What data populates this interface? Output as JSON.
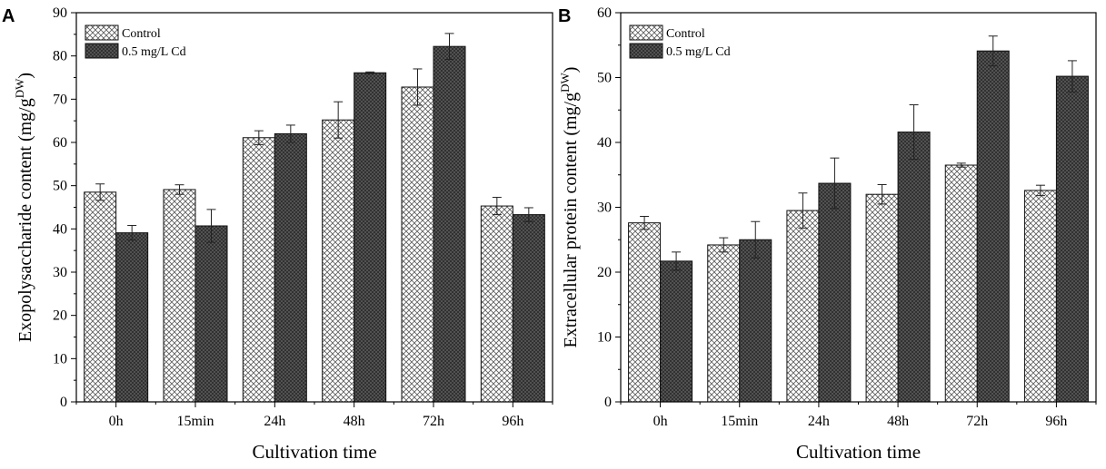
{
  "chart_data": [
    {
      "type": "bar",
      "panel_label": "A",
      "categories": [
        "0h",
        "15min",
        "24h",
        "48h",
        "72h",
        "96h"
      ],
      "series": [
        {
          "name": "Control",
          "values": [
            48.5,
            49.1,
            61.1,
            65.2,
            72.8,
            45.3
          ],
          "errors": [
            1.9,
            1.1,
            1.6,
            4.2,
            4.2,
            2.0
          ],
          "color": "#ffffff",
          "pattern": "light-crosshatch"
        },
        {
          "name": "0.5 mg/L Cd",
          "values": [
            39.1,
            40.7,
            62.0,
            76.1,
            82.2,
            43.3
          ],
          "errors": [
            1.7,
            3.8,
            2.0,
            0.2,
            3.0,
            1.6
          ],
          "color": "#6a6a6a",
          "pattern": "dark-crosshatch"
        }
      ],
      "ylabel_main": "Exopolysaccharide content (mg/g",
      "ylabel_sup": "DW",
      "ylabel_end": ")",
      "xlabel": "Cultivation time",
      "ylim": [
        0,
        90
      ],
      "yticks": [
        "0",
        "10",
        "20",
        "30",
        "40",
        "50",
        "60",
        "70",
        "80",
        "90"
      ],
      "legend_position": "top-left",
      "grid": false
    },
    {
      "type": "bar",
      "panel_label": "B",
      "categories": [
        "0h",
        "15min",
        "24h",
        "48h",
        "72h",
        "96h"
      ],
      "series": [
        {
          "name": "Control",
          "values": [
            27.6,
            24.2,
            29.5,
            32.0,
            36.5,
            32.6
          ],
          "errors": [
            1.0,
            1.1,
            2.7,
            1.5,
            0.3,
            0.8
          ],
          "color": "#ffffff",
          "pattern": "light-crosshatch"
        },
        {
          "name": "0.5 mg/L Cd",
          "values": [
            21.7,
            25.0,
            33.7,
            41.6,
            54.1,
            50.2
          ],
          "errors": [
            1.4,
            2.8,
            3.9,
            4.2,
            2.3,
            2.4
          ],
          "color": "#6a6a6a",
          "pattern": "dark-crosshatch"
        }
      ],
      "ylabel_main": "Extracellular protein content (mg/g",
      "ylabel_sup": "DW",
      "ylabel_end": ")",
      "xlabel": "Cultivation time",
      "ylim": [
        0,
        60
      ],
      "yticks": [
        "0",
        "10",
        "20",
        "30",
        "40",
        "50",
        "60"
      ],
      "legend_position": "top-left",
      "grid": false
    }
  ]
}
